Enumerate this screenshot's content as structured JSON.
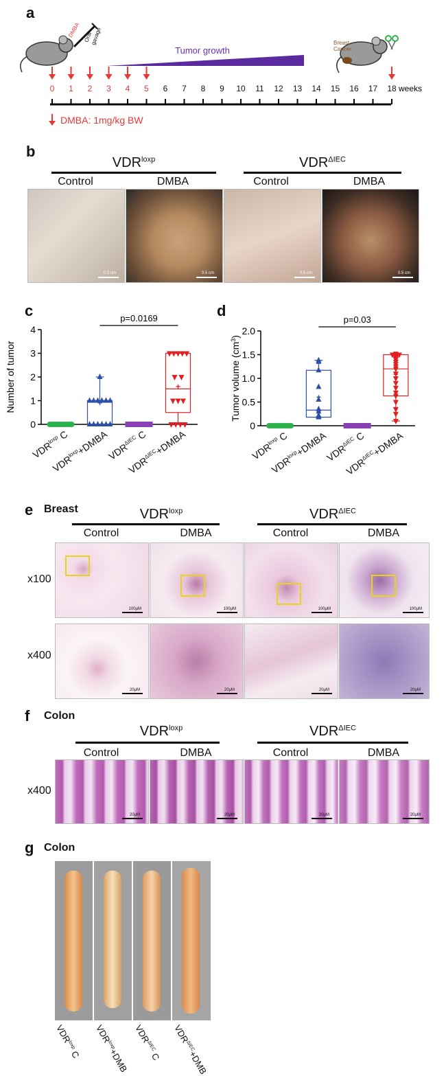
{
  "panels": {
    "a": "a",
    "b": "b",
    "c": "c",
    "d": "d",
    "e": "e",
    "f": "f",
    "g": "g"
  },
  "timeline": {
    "weeks": [
      "0",
      "1",
      "2",
      "3",
      "4",
      "5",
      "6",
      "7",
      "8",
      "9",
      "10",
      "11",
      "12",
      "13",
      "14",
      "15",
      "16",
      "17",
      "18"
    ],
    "weeks_unit": "weeks",
    "dose_weeks": [
      0,
      1,
      2,
      3,
      4,
      5
    ],
    "tumor_growth": "Tumor growth",
    "dmba_tag": "DMBA",
    "oral": "Oral",
    "gavage": "gavage",
    "breast": "Breast",
    "cancer": "Cancer",
    "legend": "DMBA: 1mg/kg BW",
    "accent": "#e53935",
    "wedge_color": "#5b2a9e"
  },
  "groups": {
    "loxp_base": "VDR",
    "loxp_sup": "loxp",
    "iec_base": "VDR",
    "iec_sup": "ΔIEC",
    "control": "Control",
    "dmba": "DMBA"
  },
  "photos_b": {
    "scale": "0.5 cm"
  },
  "tissues": {
    "breast": "Breast",
    "colon": "Colon"
  },
  "magnifications": {
    "x100": "x100",
    "x400": "x400"
  },
  "histo_scales": {
    "s100": "100μM",
    "s20": "20μM"
  },
  "xcats": [
    {
      "base": "VDR",
      "sup": "loxp",
      "rest": " C"
    },
    {
      "base": "VDR",
      "sup": "loxp",
      "rest": "+DMBA"
    },
    {
      "base": "VDR",
      "sup": "ΔIEC",
      "rest": " C"
    },
    {
      "base": "VDR",
      "sup": "ΔIEC",
      "rest": "+DMBA"
    }
  ],
  "colon_labels": [
    {
      "base": "VDR",
      "sup": "loxp",
      "rest": " C"
    },
    {
      "base": "VDR",
      "sup": "loxp",
      "rest": "+DMB"
    },
    {
      "base": "VDR",
      "sup": "ΔIEC",
      "rest": " C"
    },
    {
      "base": "VDR",
      "sup": "ΔIEC",
      "rest": "+DMB"
    }
  ],
  "chart_data": [
    {
      "type": "scatter",
      "panel": "c",
      "title": "",
      "ylabel": "Number of tumor",
      "ylim": [
        0,
        4
      ],
      "yticks": [
        "0",
        "1",
        "2",
        "3",
        "4"
      ],
      "categories": [
        "VDRloxp C",
        "VDRloxp+DMBA",
        "VDRΔIEC C",
        "VDRΔIEC+DMBA"
      ],
      "colors": [
        "#2bb24c",
        "#2f4ea8",
        "#8b3fb5",
        "#e02020"
      ],
      "markers": [
        "circle",
        "triangle",
        "square",
        "triangle-down"
      ],
      "box": [
        null,
        {
          "q1": 0,
          "median": 1,
          "q3": 1,
          "min": 0,
          "max": 2,
          "mean": 0.9
        },
        null,
        {
          "q1": 0.5,
          "median": 1.5,
          "q3": 3,
          "min": 0,
          "max": 3,
          "mean": 1.6
        }
      ],
      "points": [
        [
          0,
          0,
          0,
          0,
          0,
          0,
          0,
          0,
          0,
          0,
          0,
          0
        ],
        [
          2,
          1,
          1,
          1,
          1,
          1,
          1,
          0,
          0,
          0,
          0,
          0,
          0
        ],
        [
          0,
          0,
          0,
          0,
          0,
          0,
          0,
          0,
          0,
          0
        ],
        [
          3,
          3,
          3,
          3,
          3,
          2,
          2,
          1,
          1,
          1,
          0,
          0,
          0,
          0
        ]
      ],
      "significance": {
        "between": [
          1,
          3
        ],
        "label": "p=0.0169"
      }
    },
    {
      "type": "scatter",
      "panel": "d",
      "title": "",
      "ylabel_main": "Tumor volume (cm",
      "ylabel_sup": "3",
      "ylabel_end": ")",
      "ylim": [
        0,
        2.0
      ],
      "yticks": [
        "0",
        "0.5",
        "1.0",
        "1.5",
        "2.0"
      ],
      "categories": [
        "VDRloxp C",
        "VDRloxp+DMBA",
        "VDRΔIEC C",
        "VDRΔIEC+DMBA"
      ],
      "colors": [
        "#2bb24c",
        "#2f4ea8",
        "#8b3fb5",
        "#e02020"
      ],
      "markers": [
        "circle",
        "triangle",
        "square",
        "triangle-down"
      ],
      "box": [
        null,
        {
          "q1": 0.18,
          "median": 0.33,
          "q3": 1.17,
          "min": 0.18,
          "max": 1.38,
          "mean": 0.6
        },
        null,
        {
          "q1": 0.63,
          "median": 1.2,
          "q3": 1.5,
          "min": 0.1,
          "max": 1.52,
          "mean": 1.08
        }
      ],
      "points": [
        [
          0,
          0,
          0,
          0,
          0,
          0,
          0,
          0,
          0,
          0,
          0,
          0
        ],
        [
          1.38,
          1.35,
          1.17,
          0.82,
          0.55,
          0.35,
          0.3,
          0.22,
          0.2,
          0.18
        ],
        [
          0,
          0,
          0,
          0,
          0,
          0,
          0,
          0,
          0,
          0
        ],
        [
          1.52,
          1.5,
          1.5,
          1.48,
          1.46,
          1.45,
          1.42,
          1.4,
          1.35,
          1.3,
          1.25,
          1.2,
          1.1,
          1.0,
          0.9,
          0.8,
          0.7,
          0.63,
          0.5,
          0.35,
          0.25,
          0.1
        ]
      ],
      "significance": {
        "between": [
          1,
          3
        ],
        "label": "p=0.03"
      }
    }
  ]
}
